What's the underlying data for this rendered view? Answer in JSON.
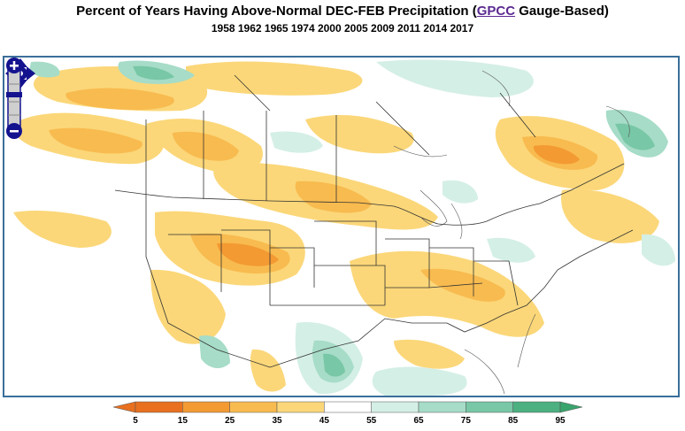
{
  "title": {
    "prefix": "Percent of Years Having Above-Normal DEC-FEB Precipitation (",
    "link_text": "GPCC",
    "suffix": " Gauge-Based)"
  },
  "subtitle": "1958 1962 1965 1974 2000 2005 2009 2011 2014 2017",
  "map_controls": {
    "pan_icon": "pan-arrows-icon",
    "zoom_in_icon": "zoom-in-icon",
    "zoom_out_icon": "zoom-out-icon"
  },
  "legend": {
    "ticks": [
      "5",
      "15",
      "25",
      "35",
      "45",
      "55",
      "65",
      "75",
      "85",
      "95"
    ],
    "colors": [
      "#e8701f",
      "#f39a33",
      "#f8bb4f",
      "#fbd779",
      "#ffffff",
      "#d4efe6",
      "#a6dcc8",
      "#78c7a6",
      "#4cb080"
    ],
    "end_low_color": "#e8701f",
    "end_high_color": "#3aa46d"
  }
}
